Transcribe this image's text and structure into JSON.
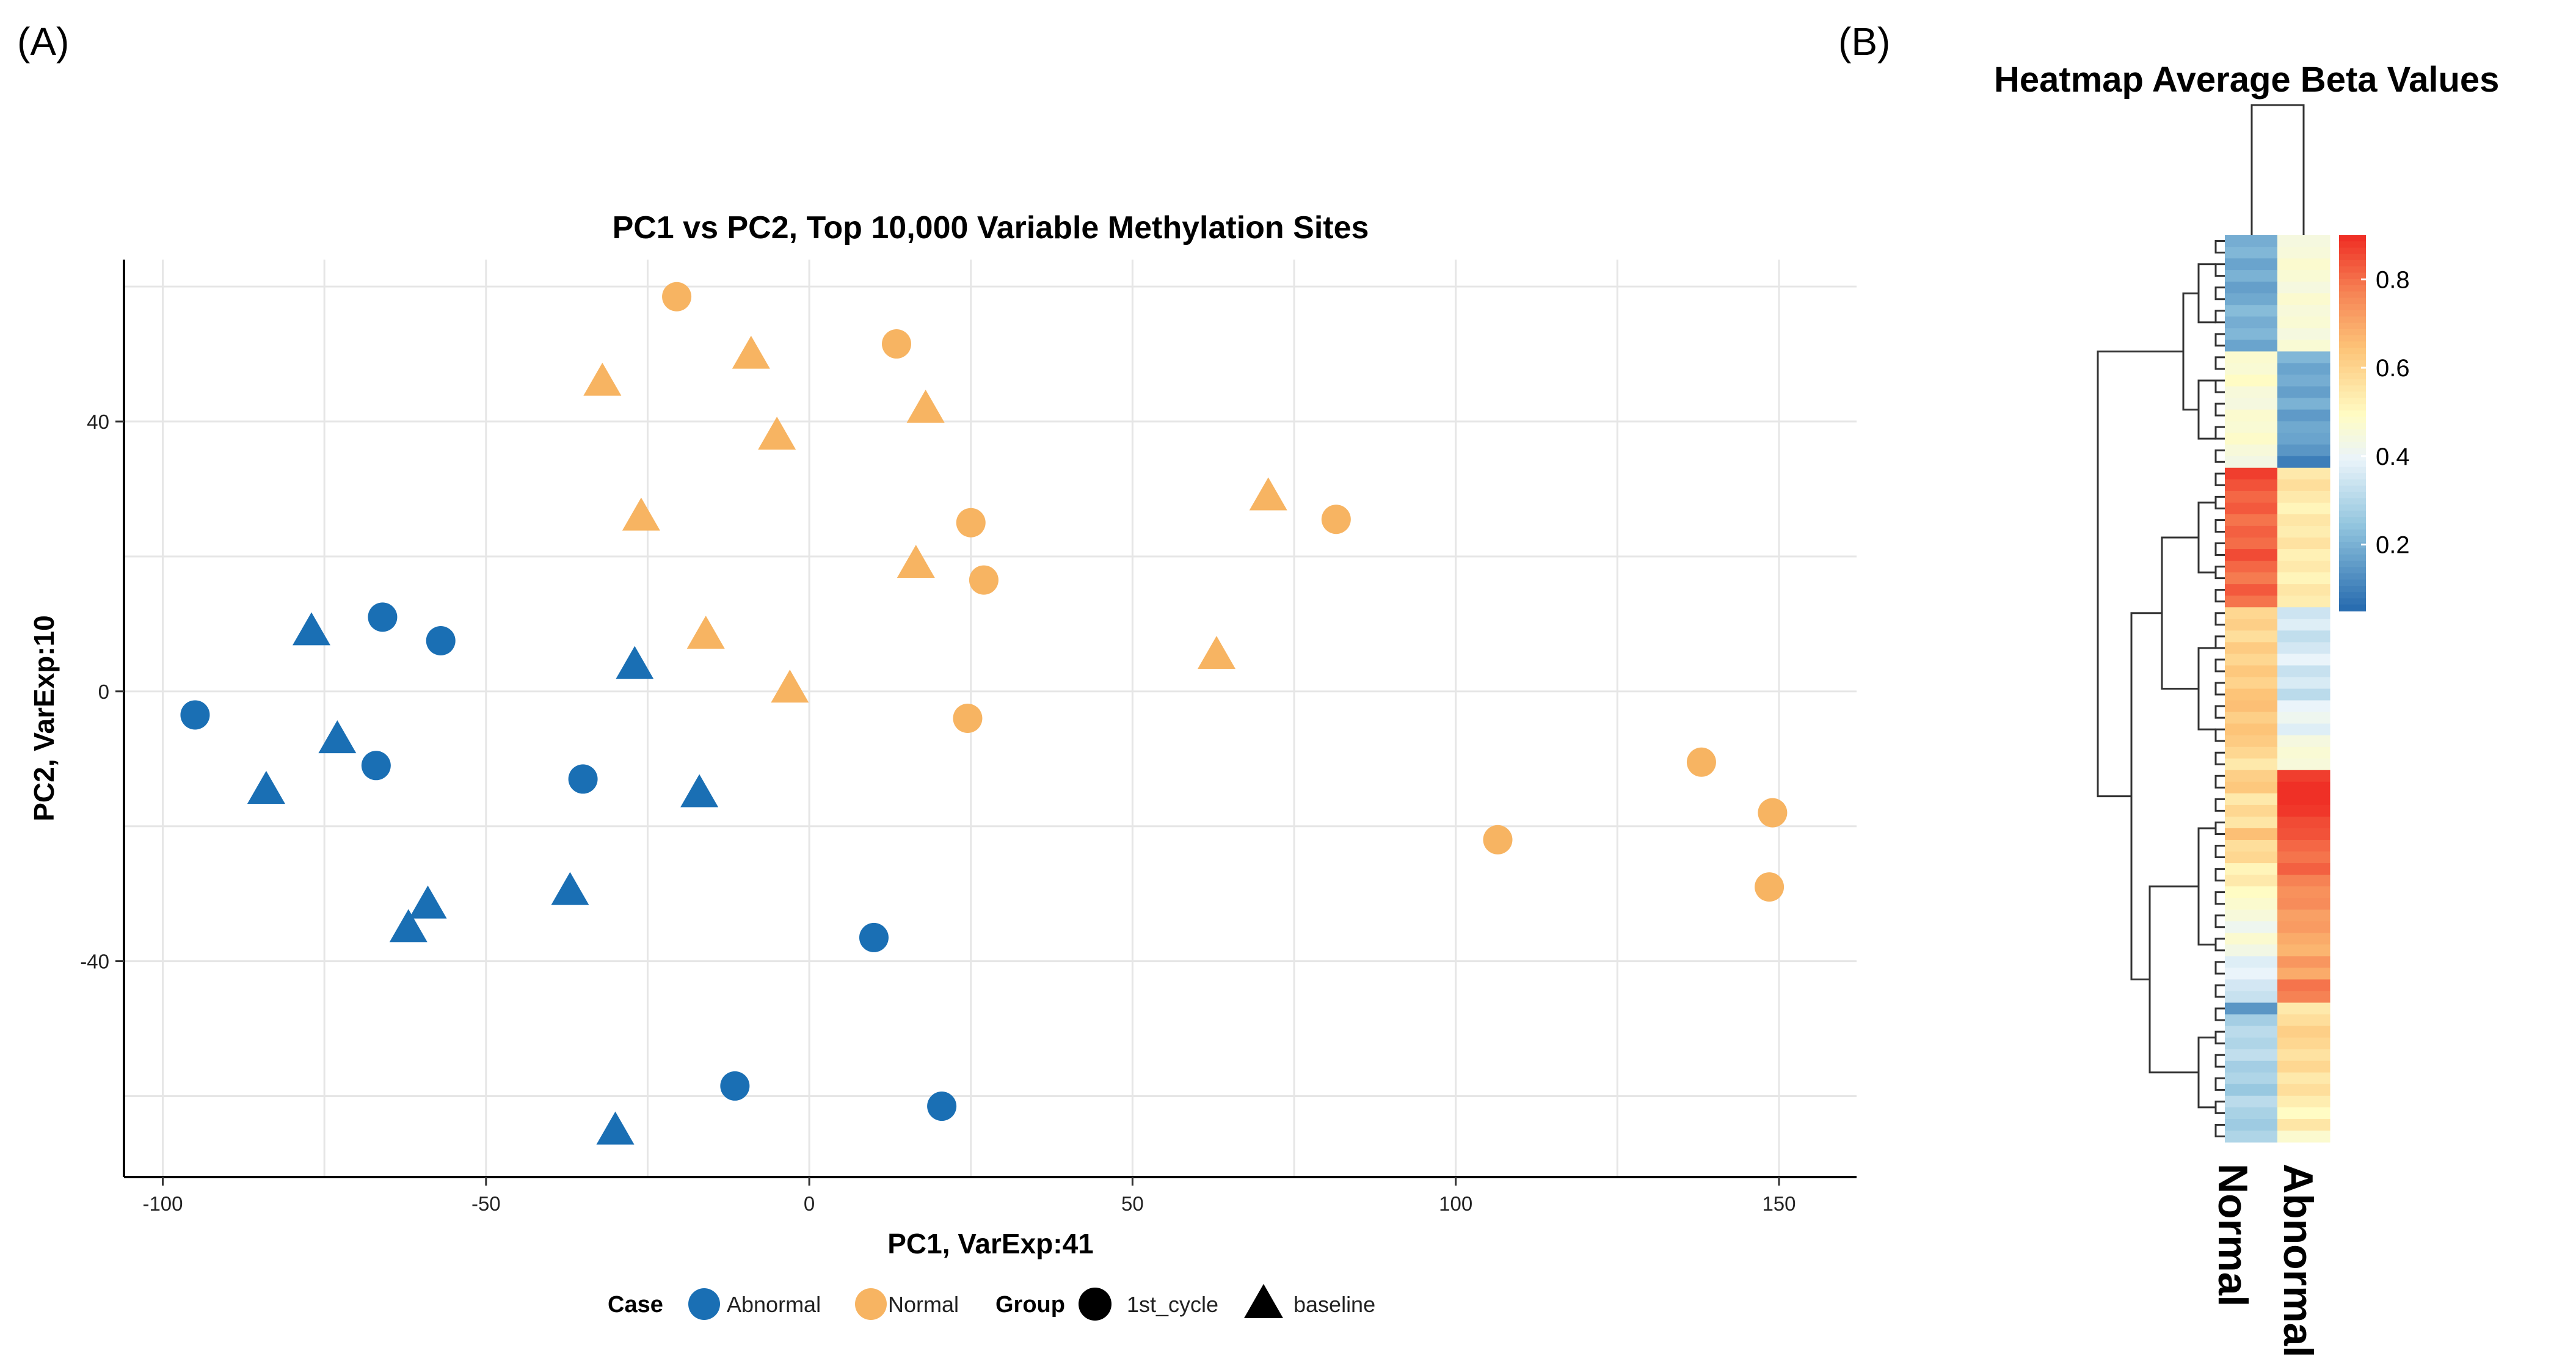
{
  "panel_labels": {
    "a": "(A)",
    "b": "(B)"
  },
  "colors": {
    "abnormal": "#1a6fb4",
    "normal": "#f7b462"
  },
  "chart_data": [
    {
      "type": "scatter",
      "title": "PC1 vs PC2, Top 10,000 Variable Methylation Sites",
      "xlabel": "PC1, VarExp:41",
      "ylabel": "PC2, VarExp:10",
      "xlim": [
        -106,
        162
      ],
      "ylim": [
        -72,
        64
      ],
      "xticks": [
        -100,
        -50,
        0,
        50,
        100,
        150
      ],
      "yticks": [
        -40,
        0,
        40
      ],
      "grid": true,
      "legend": {
        "placement": "bottom",
        "case_title": "Case",
        "group_title": "Group",
        "case_items": [
          {
            "label": "Abnormal",
            "color": "#1a6fb4"
          },
          {
            "label": "Normal",
            "color": "#f7b462"
          }
        ],
        "group_items": [
          {
            "label": "1st_cycle",
            "shape": "circle"
          },
          {
            "label": "baseline",
            "shape": "triangle"
          }
        ]
      },
      "series": [
        {
          "name": "Abnormal",
          "group": "1st_cycle",
          "shape": "circle",
          "color": "#1a6fb4",
          "points": [
            [
              -95,
              -3.5
            ],
            [
              -66,
              11
            ],
            [
              -57,
              7.5
            ],
            [
              -67,
              -11
            ],
            [
              -35,
              -13
            ],
            [
              10,
              -36.5
            ],
            [
              -11.5,
              -58.5
            ],
            [
              20.5,
              -61.5
            ]
          ]
        },
        {
          "name": "Abnormal",
          "group": "baseline",
          "shape": "triangle",
          "color": "#1a6fb4",
          "points": [
            [
              -77,
              9
            ],
            [
              -73,
              -7
            ],
            [
              -84,
              -14.5
            ],
            [
              -27,
              4
            ],
            [
              -17,
              -15
            ],
            [
              -37,
              -29.5
            ],
            [
              -59,
              -31.5
            ],
            [
              -62,
              -35
            ],
            [
              -30,
              -65
            ]
          ]
        },
        {
          "name": "Normal",
          "group": "1st_cycle",
          "shape": "circle",
          "color": "#f7b462",
          "points": [
            [
              -20.5,
              58.5
            ],
            [
              13.5,
              51.5
            ],
            [
              25,
              25
            ],
            [
              27,
              16.5
            ],
            [
              24.5,
              -4
            ],
            [
              81.5,
              25.5
            ],
            [
              106.5,
              -22
            ],
            [
              138,
              -10.5
            ],
            [
              149,
              -18
            ],
            [
              148.5,
              -29
            ]
          ]
        },
        {
          "name": "Normal",
          "group": "baseline",
          "shape": "triangle",
          "color": "#f7b462",
          "points": [
            [
              -32,
              46
            ],
            [
              -9,
              50
            ],
            [
              18,
              42
            ],
            [
              -5,
              38
            ],
            [
              -26,
              26
            ],
            [
              16.5,
              19
            ],
            [
              -16,
              8.5
            ],
            [
              -3,
              0.5
            ],
            [
              71,
              29
            ],
            [
              63,
              5.5
            ]
          ]
        }
      ]
    },
    {
      "type": "heatmap",
      "title": "Heatmap Average Beta Values",
      "columns": [
        "Normal",
        "Abnormal"
      ],
      "colorbar": {
        "range": [
          0.05,
          0.9
        ],
        "ticks": [
          0.2,
          0.4,
          0.6,
          0.8
        ]
      },
      "rows": [
        [
          0.2,
          0.45
        ],
        [
          0.22,
          0.46
        ],
        [
          0.18,
          0.48
        ],
        [
          0.21,
          0.47
        ],
        [
          0.17,
          0.45
        ],
        [
          0.19,
          0.48
        ],
        [
          0.23,
          0.46
        ],
        [
          0.2,
          0.47
        ],
        [
          0.22,
          0.45
        ],
        [
          0.18,
          0.47
        ],
        [
          0.48,
          0.22
        ],
        [
          0.47,
          0.18
        ],
        [
          0.5,
          0.2
        ],
        [
          0.46,
          0.17
        ],
        [
          0.45,
          0.21
        ],
        [
          0.48,
          0.16
        ],
        [
          0.47,
          0.19
        ],
        [
          0.49,
          0.18
        ],
        [
          0.46,
          0.15
        ],
        [
          0.44,
          0.1
        ],
        [
          0.88,
          0.55
        ],
        [
          0.85,
          0.58
        ],
        [
          0.82,
          0.55
        ],
        [
          0.84,
          0.52
        ],
        [
          0.8,
          0.56
        ],
        [
          0.83,
          0.54
        ],
        [
          0.81,
          0.57
        ],
        [
          0.86,
          0.53
        ],
        [
          0.82,
          0.55
        ],
        [
          0.79,
          0.52
        ],
        [
          0.84,
          0.56
        ],
        [
          0.8,
          0.54
        ],
        [
          0.6,
          0.35
        ],
        [
          0.62,
          0.38
        ],
        [
          0.58,
          0.33
        ],
        [
          0.63,
          0.36
        ],
        [
          0.6,
          0.4
        ],
        [
          0.64,
          0.34
        ],
        [
          0.61,
          0.37
        ],
        [
          0.65,
          0.32
        ],
        [
          0.66,
          0.4
        ],
        [
          0.62,
          0.42
        ],
        [
          0.65,
          0.38
        ],
        [
          0.63,
          0.45
        ],
        [
          0.6,
          0.47
        ],
        [
          0.55,
          0.46
        ],
        [
          0.62,
          0.88
        ],
        [
          0.64,
          0.9
        ],
        [
          0.55,
          0.91
        ],
        [
          0.6,
          0.89
        ],
        [
          0.56,
          0.86
        ],
        [
          0.66,
          0.85
        ],
        [
          0.58,
          0.82
        ],
        [
          0.6,
          0.8
        ],
        [
          0.52,
          0.83
        ],
        [
          0.55,
          0.78
        ],
        [
          0.5,
          0.75
        ],
        [
          0.48,
          0.76
        ],
        [
          0.46,
          0.72
        ],
        [
          0.42,
          0.73
        ],
        [
          0.48,
          0.7
        ],
        [
          0.44,
          0.68
        ],
        [
          0.38,
          0.74
        ],
        [
          0.4,
          0.7
        ],
        [
          0.36,
          0.8
        ],
        [
          0.34,
          0.78
        ],
        [
          0.15,
          0.55
        ],
        [
          0.28,
          0.58
        ],
        [
          0.32,
          0.62
        ],
        [
          0.3,
          0.6
        ],
        [
          0.33,
          0.57
        ],
        [
          0.28,
          0.6
        ],
        [
          0.3,
          0.55
        ],
        [
          0.26,
          0.58
        ],
        [
          0.32,
          0.54
        ],
        [
          0.29,
          0.5
        ],
        [
          0.27,
          0.56
        ],
        [
          0.3,
          0.48
        ]
      ]
    }
  ]
}
